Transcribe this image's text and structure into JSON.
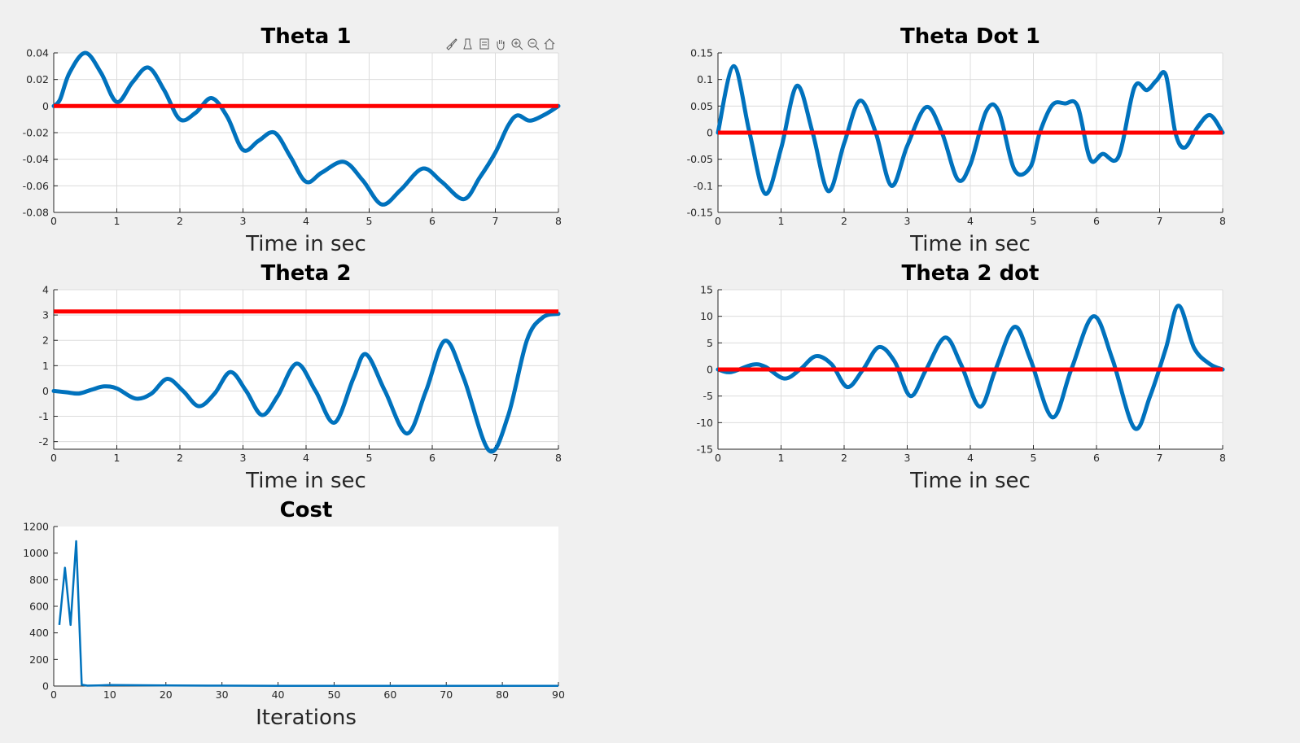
{
  "figure": {
    "background": "#f0f0f0",
    "axes_background": "#ffffff",
    "line_color": "#0072bd",
    "ref_color": "#ff0000",
    "grid_color": "#dcdcdc",
    "text_color": "#262626"
  },
  "toolbar": {
    "icons": [
      "brush-icon",
      "data-tips-icon",
      "legend-icon",
      "pan-icon",
      "zoom-in-icon",
      "zoom-out-icon",
      "home-icon"
    ]
  },
  "chart_data": [
    {
      "id": "theta1",
      "type": "line",
      "title": "Theta 1",
      "xlabel": "Time in sec",
      "ylabel": "",
      "xlim": [
        0,
        8
      ],
      "ylim": [
        -0.08,
        0.04
      ],
      "xticks": [
        0,
        1,
        2,
        3,
        4,
        5,
        6,
        7,
        8
      ],
      "yticks": [
        -0.08,
        -0.06,
        -0.04,
        -0.02,
        0,
        0.02,
        0.04
      ],
      "ytick_labels": [
        "-0.08",
        "-0.06",
        "-0.04",
        "-0.02",
        "0",
        "0.02",
        "0.04"
      ],
      "grid": true,
      "series": [
        {
          "role": "reference",
          "x": [
            0,
            8
          ],
          "y": [
            0,
            0
          ]
        },
        {
          "role": "response",
          "x": [
            0,
            0.1,
            0.25,
            0.5,
            0.75,
            1.0,
            1.25,
            1.5,
            1.75,
            2.0,
            2.25,
            2.5,
            2.75,
            3.0,
            3.25,
            3.5,
            3.75,
            4.0,
            4.25,
            4.6,
            4.9,
            5.2,
            5.5,
            5.85,
            6.15,
            6.5,
            6.75,
            7.0,
            7.2,
            7.35,
            7.55,
            7.8,
            8.0
          ],
          "y": [
            0,
            0.005,
            0.025,
            0.04,
            0.025,
            0.003,
            0.018,
            0.029,
            0.012,
            -0.01,
            -0.005,
            0.006,
            -0.008,
            -0.033,
            -0.026,
            -0.02,
            -0.038,
            -0.057,
            -0.05,
            -0.042,
            -0.056,
            -0.074,
            -0.063,
            -0.047,
            -0.057,
            -0.07,
            -0.054,
            -0.035,
            -0.015,
            -0.007,
            -0.011,
            -0.006,
            0
          ]
        }
      ]
    },
    {
      "id": "thetadot1",
      "type": "line",
      "title": "Theta Dot 1",
      "xlabel": "Time in sec",
      "ylabel": "",
      "xlim": [
        0,
        8
      ],
      "ylim": [
        -0.15,
        0.15
      ],
      "xticks": [
        0,
        1,
        2,
        3,
        4,
        5,
        6,
        7,
        8
      ],
      "yticks": [
        -0.15,
        -0.1,
        -0.05,
        0,
        0.05,
        0.1,
        0.15
      ],
      "ytick_labels": [
        "-0.15",
        "-0.1",
        "-0.05",
        "0",
        "0.05",
        "0.1",
        "0.15"
      ],
      "grid": true,
      "series": [
        {
          "role": "reference",
          "x": [
            0,
            8
          ],
          "y": [
            0,
            0
          ]
        },
        {
          "role": "response",
          "x": [
            0,
            0.25,
            0.5,
            0.75,
            1.0,
            1.25,
            1.5,
            1.75,
            2.0,
            2.25,
            2.5,
            2.75,
            3.0,
            3.3,
            3.55,
            3.8,
            4.0,
            4.25,
            4.45,
            4.7,
            4.95,
            5.1,
            5.3,
            5.5,
            5.7,
            5.9,
            6.1,
            6.35,
            6.6,
            6.8,
            6.95,
            7.1,
            7.25,
            7.4,
            7.6,
            7.8,
            8.0
          ],
          "y": [
            0,
            0.125,
            0.0,
            -0.115,
            -0.03,
            0.088,
            0.0,
            -0.11,
            -0.02,
            0.06,
            0.0,
            -0.1,
            -0.025,
            0.048,
            0.0,
            -0.088,
            -0.06,
            0.04,
            0.04,
            -0.07,
            -0.065,
            0.0,
            0.052,
            0.055,
            0.05,
            -0.05,
            -0.04,
            -0.045,
            0.085,
            0.08,
            0.098,
            0.108,
            0.0,
            -0.028,
            0.01,
            0.033,
            0.0
          ]
        }
      ]
    },
    {
      "id": "theta2",
      "type": "line",
      "title": "Theta 2",
      "xlabel": "Time in sec",
      "ylabel": "",
      "xlim": [
        0,
        8
      ],
      "ylim": [
        -2.3,
        4
      ],
      "xticks": [
        0,
        1,
        2,
        3,
        4,
        5,
        6,
        7,
        8
      ],
      "yticks": [
        -2,
        -1,
        0,
        1,
        2,
        3,
        4
      ],
      "ytick_labels": [
        "-2",
        "-1",
        "0",
        "1",
        "2",
        "3",
        "4"
      ],
      "grid": true,
      "series": [
        {
          "role": "reference",
          "x": [
            0,
            8
          ],
          "y": [
            3.14,
            3.14
          ]
        },
        {
          "role": "response",
          "x": [
            0,
            0.2,
            0.4,
            0.6,
            0.8,
            1.0,
            1.3,
            1.55,
            1.8,
            2.05,
            2.3,
            2.55,
            2.8,
            3.05,
            3.3,
            3.55,
            3.85,
            4.15,
            4.45,
            4.75,
            4.95,
            5.25,
            5.6,
            5.9,
            6.2,
            6.5,
            6.9,
            7.2,
            7.5,
            7.75,
            8.0
          ],
          "y": [
            0,
            -0.05,
            -0.1,
            0.05,
            0.18,
            0.1,
            -0.3,
            -0.1,
            0.48,
            0.0,
            -0.6,
            -0.1,
            0.75,
            0.0,
            -0.95,
            -0.2,
            1.08,
            0.0,
            -1.25,
            0.5,
            1.45,
            0.0,
            -1.68,
            0.0,
            1.98,
            0.5,
            -2.35,
            -1.0,
            2.0,
            2.9,
            3.05
          ]
        }
      ]
    },
    {
      "id": "theta2dot",
      "type": "line",
      "title": "Theta 2 dot",
      "xlabel": "Time in sec",
      "ylabel": "",
      "xlim": [
        0,
        8
      ],
      "ylim": [
        -15,
        15
      ],
      "xticks": [
        0,
        1,
        2,
        3,
        4,
        5,
        6,
        7,
        8
      ],
      "yticks": [
        -15,
        -10,
        -5,
        0,
        5,
        10,
        15
      ],
      "ytick_labels": [
        "-15",
        "-10",
        "-5",
        "0",
        "5",
        "10",
        "15"
      ],
      "grid": true,
      "series": [
        {
          "role": "reference",
          "x": [
            0,
            8
          ],
          "y": [
            0,
            0
          ]
        },
        {
          "role": "response",
          "x": [
            0,
            0.2,
            0.55,
            0.75,
            1.05,
            1.3,
            1.55,
            1.8,
            2.05,
            2.3,
            2.55,
            2.8,
            3.05,
            3.3,
            3.6,
            3.85,
            4.15,
            4.4,
            4.7,
            4.95,
            5.3,
            5.6,
            5.95,
            6.25,
            6.6,
            6.85,
            7.1,
            7.3,
            7.55,
            7.8,
            8.0
          ],
          "y": [
            0,
            -0.5,
            0.9,
            0.5,
            -1.7,
            0.0,
            2.5,
            1.0,
            -3.3,
            0.0,
            4.2,
            1.5,
            -5.0,
            0.0,
            6.0,
            1.0,
            -7.0,
            0.0,
            8.0,
            2.0,
            -9.0,
            0.0,
            10.0,
            2.0,
            -11.0,
            -5.0,
            4.0,
            12.0,
            4.0,
            1.0,
            0.0
          ]
        }
      ]
    },
    {
      "id": "cost",
      "type": "line",
      "title": "Cost",
      "xlabel": "Iterations",
      "ylabel": "",
      "xlim": [
        0,
        90
      ],
      "ylim": [
        0,
        1200
      ],
      "xticks": [
        0,
        10,
        20,
        30,
        40,
        50,
        60,
        70,
        80,
        90
      ],
      "yticks": [
        0,
        200,
        400,
        600,
        800,
        1000,
        1200
      ],
      "ytick_labels": [
        "0",
        "200",
        "400",
        "600",
        "800",
        "1000",
        "1200"
      ],
      "grid": false,
      "series": [
        {
          "role": "cost",
          "x": [
            1,
            2,
            3,
            4,
            5,
            6,
            8,
            10,
            15,
            20,
            30,
            40,
            50,
            60,
            70,
            80,
            90
          ],
          "y": [
            460,
            890,
            460,
            1090,
            10,
            3,
            5,
            8,
            6,
            4,
            3,
            2,
            2,
            2,
            2,
            1,
            1
          ]
        }
      ]
    }
  ]
}
